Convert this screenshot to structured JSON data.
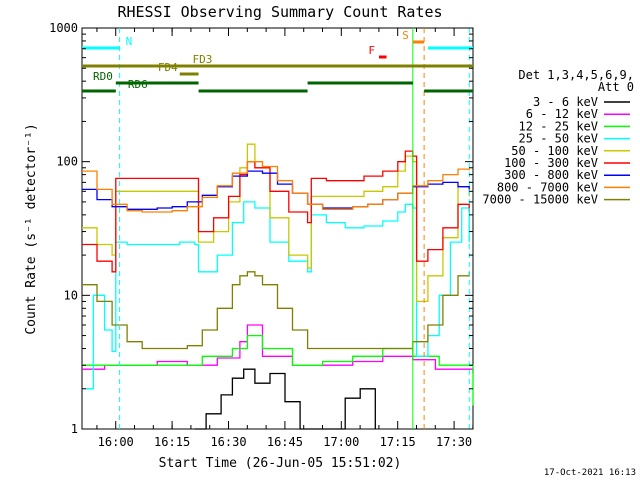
{
  "chart_data": {
    "type": "line",
    "title": "RHESSI Observing Summary Count Rates",
    "xlabel": "Start Time (26-Jun-05 15:51:02)",
    "ylabel": "Count Rate (s⁻¹ detector⁻¹)",
    "y_scale": "log",
    "ylim": [
      1,
      1000
    ],
    "y_ticks": [
      "1",
      "10",
      "100",
      "1000"
    ],
    "x_unit": "minutes after 15:51:02",
    "xlim": [
      0,
      104
    ],
    "x_tick_labels": [
      "16:00",
      "16:15",
      "16:30",
      "16:45",
      "17:00",
      "17:15",
      "17:30"
    ],
    "grid": false,
    "legend": {
      "placement": "right",
      "header": [
        "Det 1,3,4,5,6,9,",
        "Att 0"
      ]
    },
    "series": [
      {
        "name": "3 - 6 keV",
        "color": "#000000",
        "x": [
          30,
          33,
          37,
          40,
          43,
          46,
          50,
          54,
          58,
          62,
          66,
          70,
          74,
          78
        ],
        "y": [
          1,
          1.3,
          1.8,
          2.4,
          2.8,
          2.2,
          2.6,
          1.6,
          1,
          1,
          1,
          1.7,
          2,
          1
        ]
      },
      {
        "name": "6 - 12 keV",
        "color": "#ff00ff",
        "x": [
          0,
          6,
          12,
          20,
          28,
          36,
          42,
          44,
          48,
          56,
          64,
          72,
          80,
          88,
          94,
          104
        ],
        "y": [
          2.8,
          3,
          3,
          3.2,
          3,
          3.4,
          4.5,
          6,
          3.5,
          3,
          3,
          3.2,
          3.5,
          3.3,
          2.8,
          2.6
        ]
      },
      {
        "name": "12 - 25 keV",
        "color": "#00ff00",
        "x": [
          0,
          8,
          16,
          24,
          32,
          40,
          44,
          48,
          56,
          64,
          72,
          80,
          88,
          95,
          104
        ],
        "y": [
          3,
          3,
          3,
          3,
          3.5,
          4,
          5,
          4,
          3,
          3.2,
          3.5,
          4,
          3.5,
          3,
          1.5
        ]
      },
      {
        "name": "25 - 50 keV",
        "color": "#00ffff",
        "x": [
          1,
          3,
          6,
          8,
          9,
          12,
          17,
          22,
          26,
          30,
          31,
          36,
          40,
          43,
          46,
          50,
          55,
          60,
          61,
          65,
          70,
          75,
          80,
          84,
          86,
          88,
          89,
          92,
          95,
          98,
          101,
          103
        ],
        "y": [
          2,
          10,
          5.5,
          3.8,
          25,
          24,
          24,
          24,
          25,
          24,
          15,
          20,
          35,
          50,
          45,
          25,
          18,
          15,
          40,
          35,
          32,
          33,
          36,
          42,
          48,
          45,
          3.5,
          5,
          10,
          25,
          45,
          25
        ]
      },
      {
        "name": "50 - 100 keV",
        "color": "#c8c800",
        "x": [
          0,
          4,
          8,
          9,
          15,
          20,
          26,
          30,
          31,
          35,
          39,
          42,
          44,
          46,
          50,
          55,
          60,
          61,
          65,
          70,
          75,
          80,
          84,
          86,
          88,
          89,
          92,
          96,
          100,
          103
        ],
        "y": [
          32,
          24,
          20,
          60,
          60,
          60,
          60,
          60,
          25,
          30,
          50,
          90,
          135,
          90,
          38,
          20,
          16,
          55,
          55,
          55,
          60,
          65,
          85,
          110,
          100,
          9,
          14,
          27,
          65,
          55
        ]
      },
      {
        "name": "100 - 300 keV",
        "color": "#ff0000",
        "x": [
          0,
          4,
          8,
          9,
          15,
          20,
          26,
          30,
          31,
          35,
          39,
          42,
          44,
          46,
          50,
          55,
          60,
          61,
          65,
          70,
          75,
          80,
          84,
          86,
          88,
          89,
          92,
          96,
          100,
          103
        ],
        "y": [
          24,
          18,
          15,
          75,
          75,
          75,
          75,
          75,
          30,
          38,
          55,
          80,
          100,
          90,
          60,
          42,
          35,
          75,
          72,
          72,
          78,
          85,
          100,
          120,
          110,
          18,
          22,
          32,
          48,
          42
        ]
      },
      {
        "name": "300 - 800 keV",
        "color": "#0000ff",
        "x": [
          0,
          4,
          8,
          12,
          16,
          20,
          24,
          28,
          32,
          36,
          40,
          44,
          48,
          52,
          56,
          60,
          64,
          68,
          72,
          76,
          80,
          84,
          88,
          92,
          96,
          100,
          103
        ],
        "y": [
          62,
          52,
          46,
          44,
          44,
          45,
          46,
          50,
          56,
          65,
          78,
          85,
          82,
          68,
          58,
          48,
          45,
          45,
          46,
          48,
          52,
          58,
          65,
          68,
          70,
          65,
          62
        ]
      },
      {
        "name": "800 - 7000 keV",
        "color": "#ff8000",
        "x": [
          0,
          4,
          8,
          12,
          16,
          20,
          24,
          28,
          32,
          36,
          40,
          44,
          48,
          52,
          56,
          60,
          64,
          68,
          72,
          76,
          80,
          84,
          88,
          92,
          96,
          100,
          103
        ],
        "y": [
          85,
          62,
          48,
          43,
          42,
          42,
          43,
          46,
          54,
          66,
          82,
          100,
          92,
          72,
          58,
          48,
          44,
          44,
          46,
          48,
          52,
          58,
          66,
          72,
          80,
          88,
          86
        ]
      },
      {
        "name": "7000 - 15000 keV",
        "color": "#808000",
        "x": [
          0,
          4,
          8,
          12,
          16,
          20,
          24,
          28,
          32,
          36,
          40,
          42,
          44,
          46,
          48,
          52,
          56,
          60,
          64,
          68,
          72,
          76,
          80,
          84,
          88,
          92,
          96,
          100,
          103
        ],
        "y": [
          12,
          9,
          6,
          4.5,
          4,
          4,
          4,
          4.2,
          5.5,
          8,
          12,
          14,
          15,
          14,
          12,
          8,
          5.5,
          4,
          4,
          4,
          4,
          4,
          4,
          4,
          4.5,
          6,
          10,
          14,
          15
        ]
      }
    ],
    "vlines": [
      {
        "x": 10,
        "color": "#00ffff",
        "style": "dashed"
      },
      {
        "x": 88,
        "color": "#00ff00",
        "style": "solid"
      },
      {
        "x": 91,
        "color": "#ff8000",
        "style": "dashed"
      },
      {
        "x": 103,
        "color": "#00ffff",
        "style": "dashed"
      }
    ],
    "flag_bars": [
      {
        "label": "N",
        "color": "#00ffff",
        "segments": [
          [
            0,
            10
          ],
          [
            92,
            104
          ]
        ],
        "level": 1
      },
      {
        "label": "S",
        "color": "#ff8000",
        "segments": [
          [
            88,
            91
          ]
        ],
        "level": 0
      },
      {
        "label": "F",
        "color": "#ff0000",
        "segments": [
          [
            79,
            81
          ]
        ],
        "level": 2
      },
      {
        "label": "FD3",
        "color": "#808000",
        "segments": [
          [
            0,
            104
          ]
        ],
        "level": 3
      },
      {
        "label": "FD4",
        "color": "#808000",
        "segments": [
          [
            26,
            31
          ]
        ],
        "level": 4
      },
      {
        "label": "RD0",
        "color": "#006400",
        "segments": [
          [
            9,
            31
          ],
          [
            60,
            88
          ]
        ],
        "level": 5
      },
      {
        "label": "RD6",
        "color": "#006400",
        "segments": [
          [
            0,
            9
          ],
          [
            31,
            60
          ],
          [
            91,
            104
          ]
        ],
        "level": 6
      }
    ]
  },
  "footer": {
    "timestamp": "17-Oct-2021 16:13"
  }
}
